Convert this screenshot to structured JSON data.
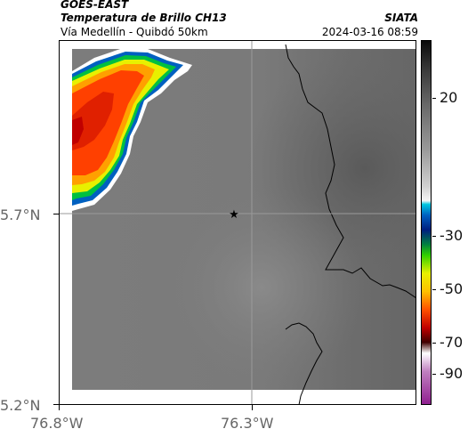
{
  "header": {
    "satellite": "GOES-EAST",
    "product": "Temperatura de Brillo CH13",
    "route": "Vía Medellín - Quibdó 50km",
    "source": "SIATA",
    "timestamp": "2024-03-16 08:59"
  },
  "map": {
    "lat_labels": [
      "5.7°N",
      "5.2°N"
    ],
    "lon_labels": [
      "76.8°W",
      "76.3°W"
    ],
    "center_marker_icon": "star-icon"
  },
  "colorbar": {
    "labels": [
      "20",
      "-30",
      "-50",
      "-70",
      "-90"
    ]
  }
}
